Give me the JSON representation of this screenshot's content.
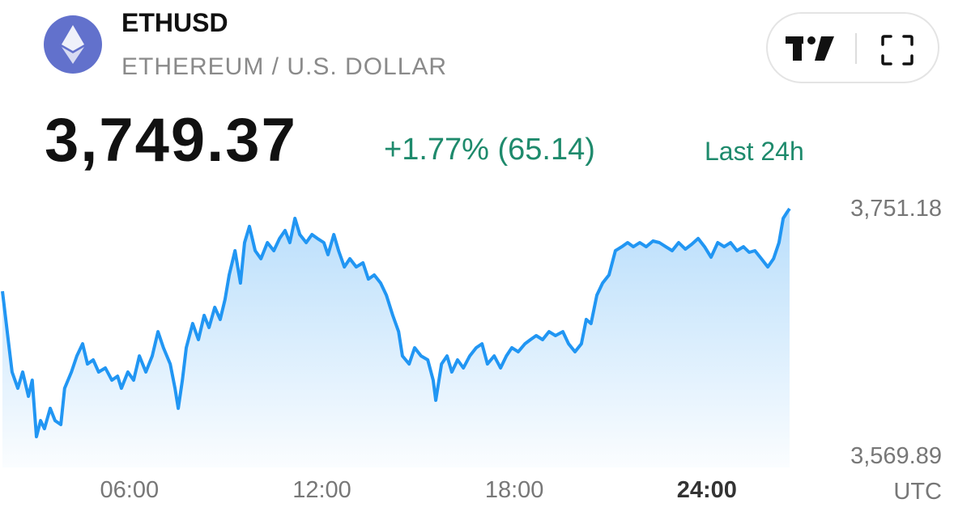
{
  "header": {
    "symbol": "ETHUSD",
    "name": "ETHEREUM / U.S. DOLLAR",
    "price": "3,749.37",
    "change": "+1.77% (65.14)",
    "period": "Last 24h"
  },
  "chart_data": {
    "type": "area",
    "color": "#2196f3",
    "xlabel": "UTC",
    "xlim": [
      2.04,
      26.58
    ],
    "ylim": [
      3569.89,
      3751.18
    ],
    "xticks": [
      {
        "value": 6,
        "label": "06:00"
      },
      {
        "value": 12,
        "label": "12:00"
      },
      {
        "value": 18,
        "label": "18:00"
      },
      {
        "value": 24,
        "label": "24:00"
      }
    ],
    "yticks": [
      {
        "value": 3751.18,
        "label": "3,751.18"
      },
      {
        "value": 3569.89,
        "label": "3,569.89"
      }
    ],
    "x": [
      2.04,
      2.22,
      2.34,
      2.52,
      2.67,
      2.85,
      2.97,
      3.1,
      3.23,
      3.35,
      3.53,
      3.68,
      3.86,
      3.98,
      4.19,
      4.36,
      4.54,
      4.69,
      4.87,
      5.04,
      5.25,
      5.45,
      5.63,
      5.75,
      5.95,
      6.13,
      6.31,
      6.51,
      6.71,
      6.89,
      7.06,
      7.27,
      7.42,
      7.52,
      7.65,
      7.77,
      7.97,
      8.15,
      8.33,
      8.48,
      8.66,
      8.83,
      8.98,
      9.11,
      9.29,
      9.46,
      9.59,
      9.74,
      9.92,
      10.1,
      10.3,
      10.5,
      10.68,
      10.85,
      11.0,
      11.16,
      11.31,
      11.51,
      11.69,
      11.86,
      12.06,
      12.19,
      12.37,
      12.52,
      12.7,
      12.87,
      13.07,
      13.28,
      13.45,
      13.63,
      13.83,
      14.01,
      14.21,
      14.39,
      14.51,
      14.72,
      14.89,
      15.09,
      15.3,
      15.47,
      15.55,
      15.73,
      15.9,
      16.05,
      16.23,
      16.41,
      16.61,
      16.81,
      16.99,
      17.16,
      17.37,
      17.57,
      17.75,
      17.92,
      18.12,
      18.33,
      18.5,
      18.68,
      18.88,
      19.08,
      19.28,
      19.51,
      19.69,
      19.89,
      20.09,
      20.24,
      20.39,
      20.57,
      20.75,
      20.95,
      21.15,
      21.35,
      21.53,
      21.71,
      21.91,
      22.11,
      22.32,
      22.52,
      22.72,
      22.92,
      23.12,
      23.33,
      23.53,
      23.73,
      23.93,
      24.13,
      24.34,
      24.54,
      24.74,
      24.94,
      25.14,
      25.32,
      25.5,
      25.7,
      25.9,
      26.08,
      26.25,
      26.38,
      26.51,
      26.58
    ],
    "values": [
      3690.1,
      3654.6,
      3630.9,
      3619.0,
      3630.9,
      3613.1,
      3624.9,
      3583.5,
      3595.3,
      3589.4,
      3604.3,
      3595.3,
      3592.4,
      3619.0,
      3630.9,
      3642.7,
      3651.6,
      3636.8,
      3639.8,
      3630.9,
      3633.9,
      3624.9,
      3627.9,
      3619.0,
      3630.9,
      3624.9,
      3642.7,
      3630.9,
      3642.7,
      3660.5,
      3648.7,
      3636.8,
      3619.0,
      3604.3,
      3624.9,
      3648.7,
      3666.4,
      3654.6,
      3672.4,
      3663.5,
      3678.3,
      3669.4,
      3684.2,
      3702.0,
      3719.8,
      3696.1,
      3725.7,
      3737.6,
      3719.8,
      3713.9,
      3725.7,
      3719.8,
      3728.7,
      3734.6,
      3725.7,
      3743.5,
      3731.6,
      3725.7,
      3731.6,
      3728.7,
      3725.7,
      3716.8,
      3731.6,
      3719.8,
      3707.9,
      3713.9,
      3707.9,
      3710.9,
      3699.0,
      3702.0,
      3696.1,
      3687.2,
      3672.4,
      3660.5,
      3642.7,
      3636.8,
      3648.7,
      3642.7,
      3639.8,
      3624.9,
      3610.2,
      3636.8,
      3642.7,
      3630.9,
      3639.8,
      3633.9,
      3642.7,
      3648.7,
      3651.6,
      3636.8,
      3642.7,
      3633.9,
      3642.7,
      3648.7,
      3645.7,
      3651.6,
      3654.6,
      3657.6,
      3654.6,
      3660.5,
      3657.6,
      3660.5,
      3651.6,
      3645.7,
      3651.6,
      3669.4,
      3666.4,
      3687.2,
      3696.1,
      3702.0,
      3719.8,
      3722.7,
      3725.7,
      3722.7,
      3725.7,
      3722.7,
      3726.9,
      3725.7,
      3722.7,
      3719.8,
      3725.7,
      3720.9,
      3724.5,
      3728.7,
      3722.7,
      3715.0,
      3725.7,
      3722.7,
      3725.7,
      3719.8,
      3722.7,
      3718.6,
      3719.8,
      3713.9,
      3707.9,
      3713.9,
      3725.7,
      3743.5,
      3748.2,
      3750.6
    ]
  }
}
